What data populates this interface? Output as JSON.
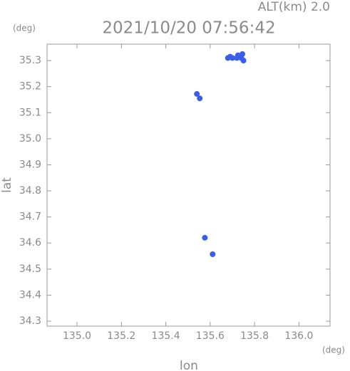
{
  "chart_data": {
    "type": "scatter",
    "title": "2021/10/20 07:56:42",
    "annotation": "ALT(km) 2.0",
    "y_unit": "(deg)",
    "x_unit": "(deg)",
    "x_label": "lon",
    "y_label": "lat",
    "series": [
      {
        "color": "#3c5ee6",
        "x": [
          135.68,
          135.7,
          135.72,
          135.74,
          135.745,
          135.75,
          135.725,
          135.69,
          135.54,
          135.553,
          135.576,
          135.611
        ],
        "values": [
          35.31,
          35.31,
          35.31,
          35.31,
          35.325,
          35.3,
          35.32,
          35.315,
          35.172,
          35.155,
          34.62,
          34.557
        ]
      }
    ],
    "xlim": [
      134.865,
      136.14
    ],
    "ylim": [
      34.281,
      35.363
    ],
    "xticks": [
      {
        "value": 135,
        "label": "135.0"
      },
      135.2,
      135.4,
      135.6,
      135.8,
      {
        "value": 136,
        "label": "136.0"
      }
    ],
    "yticks": [
      35.3,
      35.2,
      35.1,
      {
        "value": 35,
        "label": "35.0"
      },
      34.9,
      34.8,
      34.7,
      34.6,
      34.5,
      34.4,
      34.3
    ]
  }
}
